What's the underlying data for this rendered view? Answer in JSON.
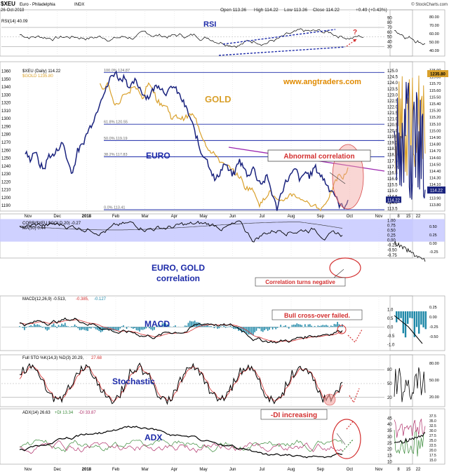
{
  "header": {
    "symbol": "$XEU",
    "name": "Euro - Philadelphia",
    "exchange": "INDX",
    "date": "26-Oct-2018",
    "open_label": "Open",
    "open": "113.36",
    "high_label": "High",
    "high": "114.22",
    "low_label": "Low",
    "low": "113.36",
    "close_label": "Close",
    "close": "114.22",
    "change": "+0.49 (+0.43%)",
    "brand": "© StockCharts.com"
  },
  "annotations": {
    "rsi": "RSI",
    "gold": "GOLD",
    "euro": "EURO",
    "website": "www.angtraders.com",
    "abnormal": "Abnormal correlation",
    "corr_title": "EURO, GOLD",
    "corr_title2": "correlation",
    "corr_negative": "Correlation turns negative",
    "macd": "MACD",
    "bull_cross": "Bull cross-over failed.",
    "stochastic": "Stochastic",
    "adx": "ADX",
    "di_increasing": "-DI increasing",
    "question": "?"
  },
  "colors": {
    "euro": "#1a237e",
    "gold": "#d9a02b",
    "blue_text": "#1c2aa8",
    "red_text": "#d32f2f",
    "corr_band": "#c7c9ff",
    "purple_line": "#9c27b0",
    "macd_hist": "#1e88a8",
    "adx_pos": "#3a8a3a",
    "adx_neg": "#b0306a",
    "web": "#e08a00"
  },
  "legends": {
    "rsi": "RSI(14) 40.09",
    "price": "$XEU (Daily) 114.22",
    "gold": "$GOLD 1235.80",
    "corr": "CORR($XEU,$GOLD,20) -0.27",
    "corr_ma": "MA(50) 0.44",
    "macd_a": "MACD(12,26,9) -0.513,",
    "macd_b": "-0.385,",
    "macd_c": "-0.127",
    "sto_a": "Full STO %K(14,3) %D(3) 20.29,",
    "sto_b": "27.68",
    "adx_a": "ADX(14) 26.63",
    "adx_b": "+DI 13.34",
    "adx_c": "-DI 33.87"
  },
  "fib": [
    {
      "label": "100.0% 124.87",
      "value": 124.87
    },
    {
      "label": "61.8% 120.55",
      "value": 120.55
    },
    {
      "label": "50.0% 119.19",
      "value": 119.19
    },
    {
      "label": "38.2% 117.83",
      "value": 117.83
    },
    {
      "label": "0.0% 113.41",
      "value": 113.41
    }
  ],
  "chart_data": {
    "type": "line",
    "x_labels": [
      "Nov",
      "Dec",
      "2018",
      "Feb",
      "Mar",
      "Apr",
      "May",
      "Jun",
      "Jul",
      "Aug",
      "Sep",
      "Oct",
      "Nov"
    ],
    "weekly_x_labels": [
      "8",
      "15",
      "22"
    ],
    "price_panel": {
      "left_axis_gold": [
        1190,
        1200,
        1210,
        1220,
        1230,
        1240,
        1250,
        1260,
        1270,
        1280,
        1290,
        1300,
        1310,
        1320,
        1330,
        1340,
        1350,
        1360
      ],
      "right_axis_euro": [
        "125.0",
        "124.5",
        "124.0",
        "123.5",
        "123.0",
        "122.5",
        "122.0",
        "121.5",
        "121.0",
        "120.5",
        "120.0",
        "119.5",
        "119.0",
        "118.5",
        "118.0",
        "117.5",
        "117.0",
        "116.5",
        "116.0",
        "115.5",
        "115.0",
        "114.5",
        "114.0",
        "113.5"
      ],
      "right_axis_weekly": [
        "115.90",
        "115.80",
        "115.70",
        "115.60",
        "115.50",
        "115.40",
        "115.30",
        "115.20",
        "115.10",
        "115.00",
        "114.90",
        "114.80",
        "114.70",
        "114.60",
        "114.50",
        "114.40",
        "114.30",
        "114.10",
        "114.00",
        "113.90",
        "113.80"
      ],
      "ylim_euro": [
        113.3,
        125.3
      ],
      "ylim_gold": [
        1183,
        1365
      ],
      "euro_last": "114.22",
      "gold_last": "1235.80",
      "series": [
        {
          "name": "$XEU (Daily) 114.22",
          "values": [
            118.2,
            117.6,
            118.4,
            117.2,
            116.8,
            118.0,
            117.9,
            118.6,
            119.0,
            117.3,
            116.5,
            118.3,
            118.8,
            119.8,
            120.6,
            121.5,
            122.8,
            123.4,
            124.5,
            124.9,
            124.2,
            124.6,
            123.4,
            124.2,
            123.7,
            123.0,
            122.8,
            123.5,
            123.9,
            123.4,
            123.1,
            123.8,
            123.3,
            122.6,
            121.8,
            120.8,
            119.6,
            118.2,
            117.8,
            116.9,
            115.8,
            116.5,
            117.3,
            116.6,
            116.3,
            117.6,
            116.9,
            116.2,
            117.0,
            115.9,
            115.6,
            116.2,
            114.8,
            113.5,
            114.9,
            115.8,
            116.3,
            116.8,
            115.8,
            116.6,
            116.2,
            117.0,
            116.4,
            115.9,
            115.2,
            114.9,
            113.9,
            113.6,
            114.22
          ]
        },
        {
          "name": "$GOLD 1235.80",
          "values": [
            1283,
            1278,
            1286,
            1276,
            1266,
            1256,
            1247,
            1263,
            1282,
            1296,
            1308,
            1322,
            1332,
            1343,
            1356,
            1350,
            1335,
            1346,
            1320,
            1317,
            1332,
            1330,
            1342,
            1336,
            1325,
            1343,
            1340,
            1322,
            1318,
            1315,
            1300,
            1303,
            1300,
            1302,
            1306,
            1298,
            1280,
            1267,
            1256,
            1255,
            1244,
            1240,
            1238,
            1230,
            1226,
            1212,
            1212,
            1206,
            1190,
            1200,
            1208,
            1200,
            1193,
            1198,
            1203,
            1205,
            1198,
            1198,
            1190,
            1193,
            1185,
            1189,
            1200,
            1213,
            1228,
            1225,
            1235.8
          ]
        }
      ]
    },
    "rsi_panel": {
      "ticks": [
        30,
        40,
        50,
        60,
        70,
        80,
        90
      ],
      "ylim": [
        10,
        95
      ],
      "last": 40.09,
      "weekly_ticks": [
        "80.00",
        "70.00",
        "60.00",
        "50.00",
        "40.09"
      ]
    },
    "corr_panel": {
      "ticks": [
        "1.00",
        "0.75",
        "0.50",
        "0.25",
        "0.00",
        "-0.25",
        "-0.50",
        "-0.75"
      ],
      "ylim": [
        -0.9,
        1.05
      ],
      "last": -0.27,
      "ma_last": 0.44,
      "weekly_ticks": [
        "0.50",
        "0.25",
        "0.00",
        "-0.25"
      ]
    },
    "macd_panel": {
      "ticks": [
        "1.0",
        "0.5",
        "0.0",
        "-0.5",
        "-1.0"
      ],
      "ylim": [
        -1.35,
        1.45
      ],
      "macd_last": -0.513,
      "signal_last": -0.385,
      "hist_last": -0.127,
      "weekly_ticks": [
        "0.25",
        "0.00",
        "-0.25",
        "-0.50"
      ]
    },
    "sto_panel": {
      "ticks": [
        20,
        50,
        80
      ],
      "ylim": [
        0,
        100
      ],
      "k_last": 20.29,
      "d_last": 27.68,
      "weekly_ticks": [
        "80.00",
        "50.00",
        "20.00"
      ]
    },
    "adx_panel": {
      "ticks": [
        10,
        15,
        20,
        25,
        30,
        35,
        40,
        45
      ],
      "ylim": [
        8,
        48
      ],
      "adx_last": 26.63,
      "pdi_last": 13.34,
      "ndi_last": 33.87,
      "weekly_ticks": [
        "37.5",
        "35.0",
        "32.5",
        "30.0",
        "27.5",
        "25.0",
        "22.5",
        "20.0",
        "17.5",
        "15.0"
      ]
    }
  }
}
